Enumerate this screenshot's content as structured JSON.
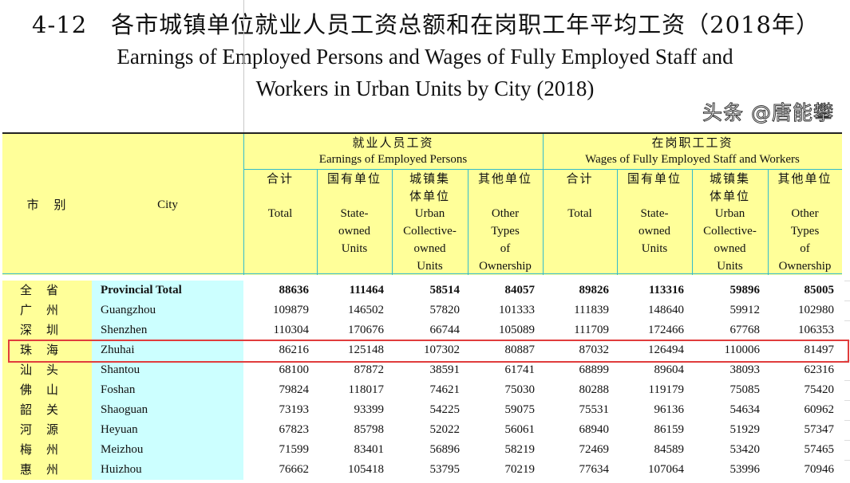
{
  "title": {
    "cn": "4-12　各市城镇单位就业人员工资总额和在岗职工年平均工资（2018年）",
    "en_line1": "Earnings of Employed Persons and Wages of Fully Employed Staff and",
    "en_line2": "Workers  in Urban Units by City (2018)"
  },
  "header": {
    "region_cn": "市　别",
    "city": "City",
    "group1": {
      "cn": "就业人员工资",
      "en": "Earnings of Employed Persons"
    },
    "group2": {
      "cn": "在岗职工工资",
      "en": "Wages of Fully Employed Staff and Workers"
    },
    "cols": [
      {
        "cn": "合计",
        "en": "Total"
      },
      {
        "cn": "国有单位",
        "en": "State-owned Units"
      },
      {
        "cn": "城镇集体单位",
        "en": "Urban Collective-owned Units"
      },
      {
        "cn": "其他单位",
        "en": "Other Types of Ownership"
      }
    ]
  },
  "rows": [
    {
      "cn": "全省",
      "city": "Provincial Total",
      "v": [
        "88636",
        "111464",
        "58514",
        "84057",
        "89826",
        "113316",
        "59896",
        "85005"
      ]
    },
    {
      "cn": "广州",
      "city": "Guangzhou",
      "v": [
        "109879",
        "146502",
        "57820",
        "101333",
        "111839",
        "148640",
        "59912",
        "102980"
      ]
    },
    {
      "cn": "深圳",
      "city": "Shenzhen",
      "v": [
        "110304",
        "170676",
        "66744",
        "105089",
        "111709",
        "172466",
        "67768",
        "106353"
      ]
    },
    {
      "cn": "珠海",
      "city": "Zhuhai",
      "v": [
        "86216",
        "125148",
        "107302",
        "80887",
        "87032",
        "126494",
        "110006",
        "81497"
      ]
    },
    {
      "cn": "汕头",
      "city": "Shantou",
      "v": [
        "68100",
        "87872",
        "38591",
        "61741",
        "68899",
        "89604",
        "38093",
        "62316"
      ]
    },
    {
      "cn": "佛山",
      "city": "Foshan",
      "v": [
        "79824",
        "118017",
        "74621",
        "75030",
        "80288",
        "119179",
        "75085",
        "75420"
      ]
    },
    {
      "cn": "韶关",
      "city": "Shaoguan",
      "v": [
        "73193",
        "93399",
        "54225",
        "59075",
        "75531",
        "96136",
        "54634",
        "60962"
      ]
    },
    {
      "cn": "河源",
      "city": "Heyuan",
      "v": [
        "67823",
        "85798",
        "52022",
        "56061",
        "68940",
        "86159",
        "51929",
        "57347"
      ]
    },
    {
      "cn": "梅州",
      "city": "Meizhou",
      "v": [
        "71599",
        "83401",
        "56896",
        "58219",
        "72469",
        "84589",
        "53420",
        "57465"
      ]
    },
    {
      "cn": "惠州",
      "city": "Huizhou",
      "v": [
        "76662",
        "105418",
        "53795",
        "70219",
        "77634",
        "107064",
        "53996",
        "70946"
      ]
    }
  ],
  "highlight_color": "#e03c3c",
  "watermark": "头条 @唐能攀"
}
